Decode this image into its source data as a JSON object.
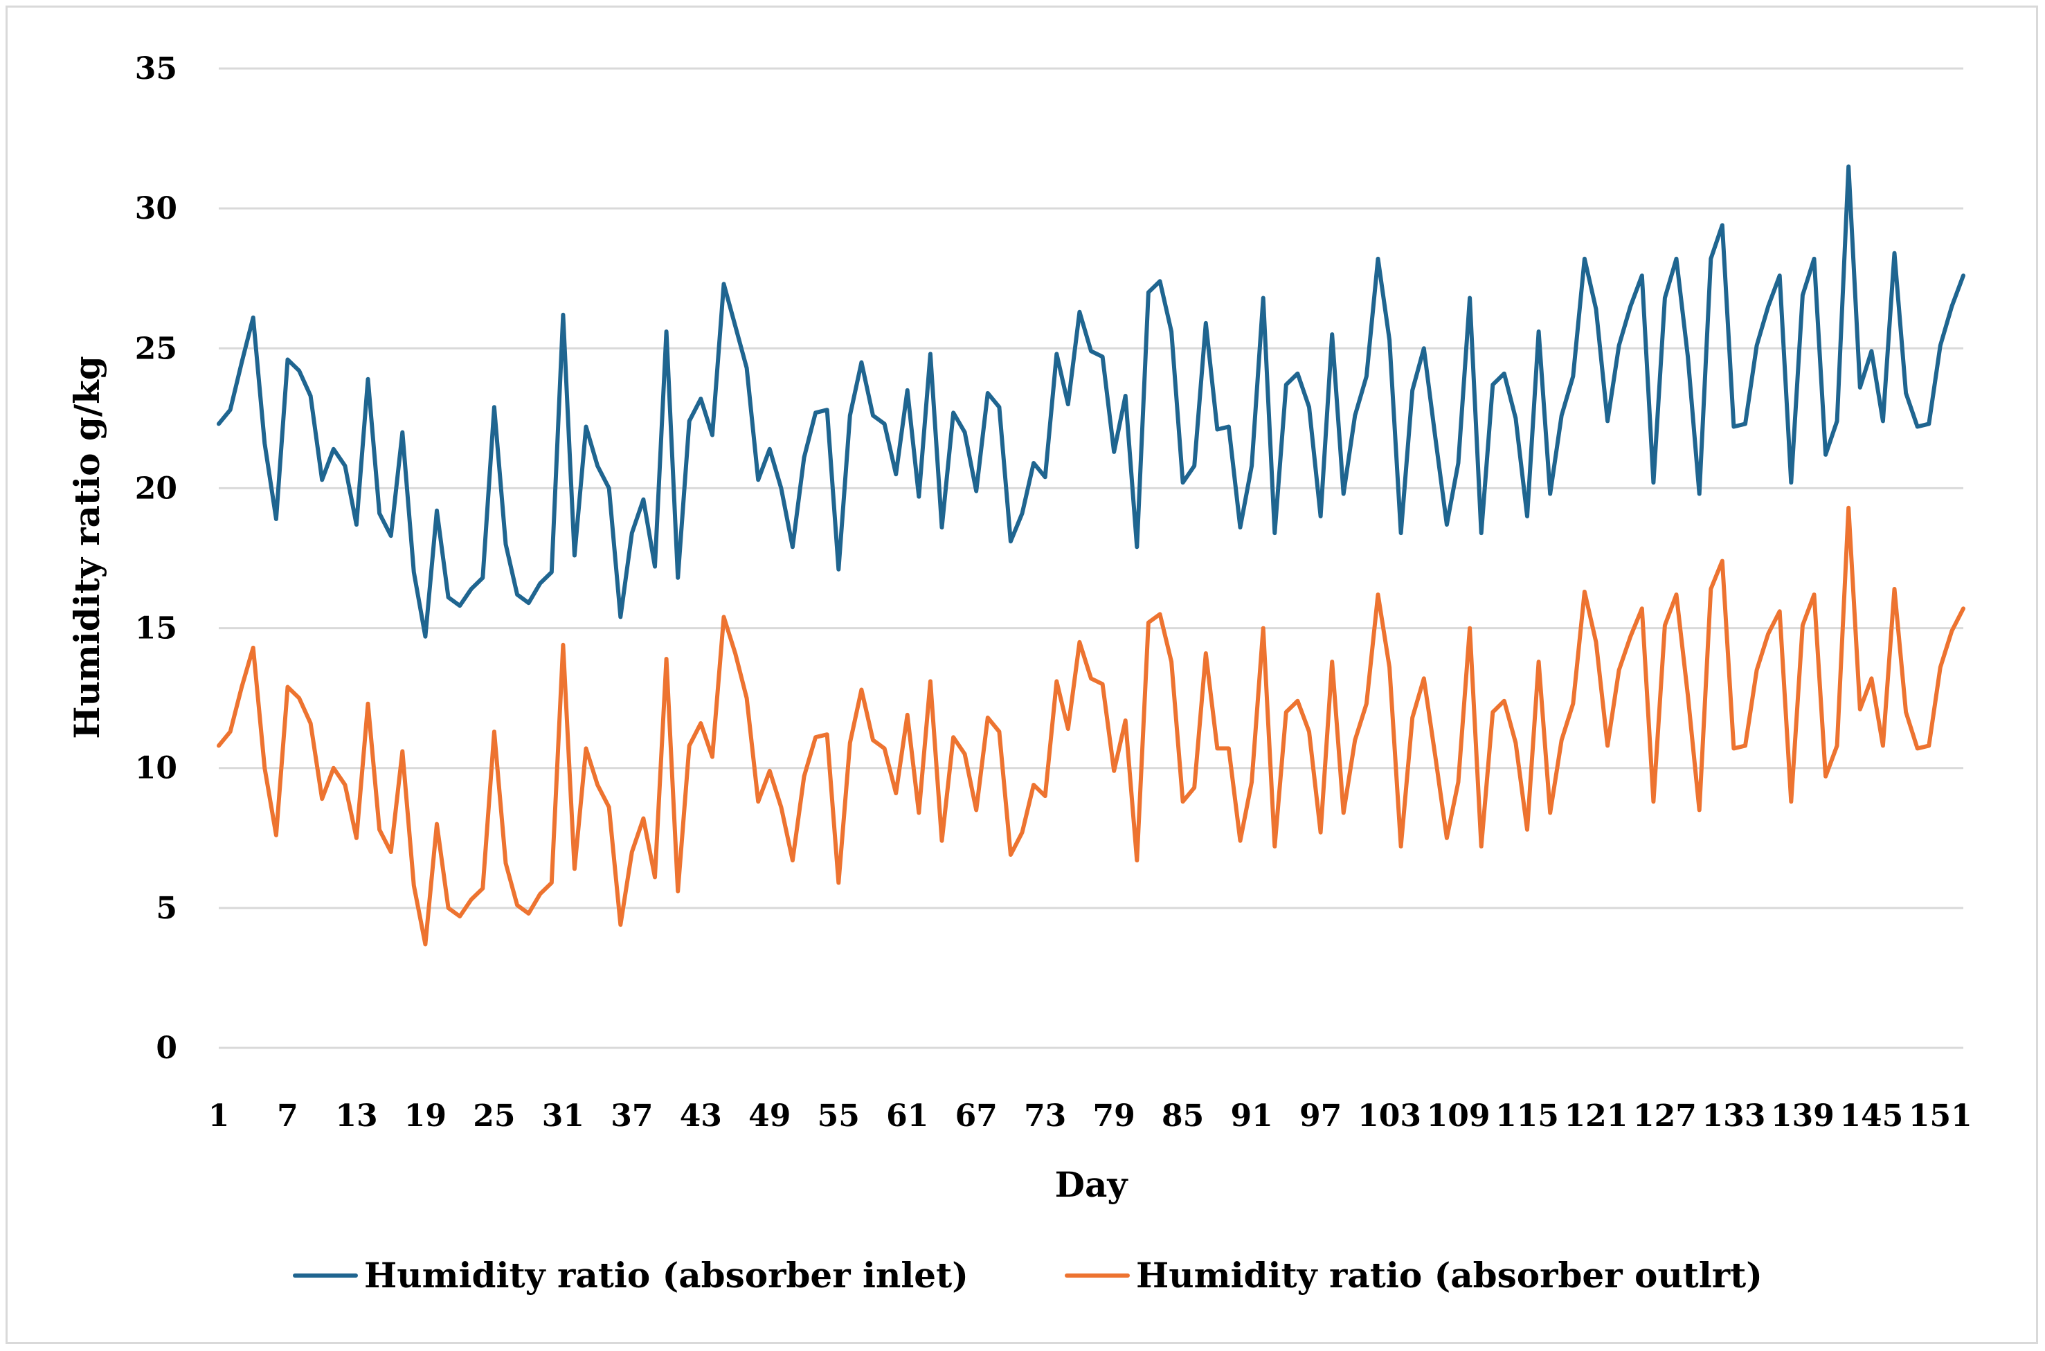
{
  "chart_data": {
    "type": "line",
    "title": "",
    "xlabel": "Day",
    "ylabel": "Humidity  ratio g/kg",
    "ylim": [
      0,
      35
    ],
    "yticks": [
      0,
      5,
      10,
      15,
      20,
      25,
      30,
      35
    ],
    "xticks": [
      1,
      7,
      13,
      19,
      25,
      31,
      37,
      43,
      49,
      55,
      61,
      67,
      73,
      79,
      85,
      91,
      97,
      103,
      109,
      115,
      121,
      127,
      133,
      139,
      145,
      151
    ],
    "grid": true,
    "legend_position": "bottom",
    "x": [
      1,
      2,
      3,
      4,
      5,
      6,
      7,
      8,
      9,
      10,
      11,
      12,
      13,
      14,
      15,
      16,
      17,
      18,
      19,
      20,
      21,
      22,
      23,
      24,
      25,
      26,
      27,
      28,
      29,
      30,
      31,
      32,
      33,
      34,
      35,
      36,
      37,
      38,
      39,
      40,
      41,
      42,
      43,
      44,
      45,
      46,
      47,
      48,
      49,
      50,
      51,
      52,
      53,
      54,
      55,
      56,
      57,
      58,
      59,
      60,
      61,
      62,
      63,
      64,
      65,
      66,
      67,
      68,
      69,
      70,
      71,
      72,
      73,
      74,
      75,
      76,
      77,
      78,
      79,
      80,
      81,
      82,
      83,
      84,
      85,
      86,
      87,
      88,
      89,
      90,
      91,
      92,
      93,
      94,
      95,
      96,
      97,
      98,
      99,
      100,
      101,
      102,
      103,
      104,
      105,
      106,
      107,
      108,
      109,
      110,
      111,
      112,
      113,
      114,
      115,
      116,
      117,
      118,
      119,
      120,
      121,
      122,
      123,
      124,
      125,
      126,
      127,
      128,
      129,
      130,
      131,
      132,
      133,
      134,
      135,
      136,
      137,
      138,
      139,
      140,
      141,
      142,
      143,
      144,
      145,
      146,
      147,
      148,
      149,
      150,
      151,
      152,
      153
    ],
    "series": [
      {
        "name": "Humidity ratio (absorber inlet)",
        "color": "#1f6590",
        "values": [
          22.3,
          22.8,
          24.5,
          26.1,
          21.6,
          18.9,
          24.6,
          24.2,
          23.3,
          20.3,
          21.4,
          20.8,
          18.7,
          23.9,
          19.1,
          18.3,
          22.0,
          17.0,
          14.7,
          19.2,
          16.1,
          15.8,
          16.4,
          16.8,
          22.9,
          18.0,
          16.2,
          15.9,
          16.6,
          17.0,
          26.2,
          17.6,
          22.2,
          20.8,
          20.0,
          15.4,
          18.4,
          19.6,
          17.2,
          25.6,
          16.8,
          22.4,
          23.2,
          21.9,
          27.3,
          25.8,
          24.3,
          20.3,
          21.4,
          20.0,
          17.9,
          21.1,
          22.7,
          22.8,
          17.1,
          22.6,
          24.5,
          22.6,
          22.3,
          20.5,
          23.5,
          19.7,
          24.8,
          18.6,
          22.7,
          22.0,
          19.9,
          23.4,
          22.9,
          18.1,
          19.1,
          20.9,
          20.4,
          24.8,
          23.0,
          26.3,
          24.9,
          24.7,
          21.3,
          23.3,
          17.9,
          27.0,
          27.4,
          25.6,
          20.2,
          20.8,
          25.9,
          22.1,
          22.2,
          18.6,
          20.8,
          26.8,
          18.4,
          23.7,
          24.1,
          22.9,
          19.0,
          25.5,
          19.8,
          22.6,
          24.0,
          28.2,
          25.3,
          18.4,
          23.5,
          25.0,
          21.8,
          18.7,
          20.9,
          26.8,
          18.4,
          23.7,
          24.1,
          22.5,
          19.0,
          25.6,
          19.8,
          22.6,
          24.0,
          28.2,
          26.4,
          22.4,
          25.1,
          26.5,
          27.6,
          20.2,
          26.8,
          28.2,
          24.7,
          19.8,
          28.2,
          29.4,
          22.2,
          22.3,
          25.1,
          26.5,
          27.6,
          20.2,
          26.9,
          28.2,
          21.2,
          22.4,
          31.5,
          23.6,
          24.9,
          22.4,
          28.4,
          23.4,
          22.2,
          22.3,
          25.1,
          26.5,
          27.6
        ]
      },
      {
        "name": "Humidity ratio (absorber outlrt)",
        "color": "#ed7330",
        "values": [
          10.8,
          11.3,
          12.9,
          14.3,
          10.0,
          7.6,
          12.9,
          12.5,
          11.6,
          8.9,
          10.0,
          9.4,
          7.5,
          12.3,
          7.8,
          7.0,
          10.6,
          5.8,
          3.7,
          8.0,
          5.0,
          4.7,
          5.3,
          5.7,
          11.3,
          6.6,
          5.1,
          4.8,
          5.5,
          5.9,
          14.4,
          6.4,
          10.7,
          9.4,
          8.6,
          4.4,
          7.0,
          8.2,
          6.1,
          13.9,
          5.6,
          10.8,
          11.6,
          10.4,
          15.4,
          14.1,
          12.5,
          8.8,
          9.9,
          8.6,
          6.7,
          9.7,
          11.1,
          11.2,
          5.9,
          10.9,
          12.8,
          11.0,
          10.7,
          9.1,
          11.9,
          8.4,
          13.1,
          7.4,
          11.1,
          10.5,
          8.5,
          11.8,
          11.3,
          6.9,
          7.7,
          9.4,
          9.0,
          13.1,
          11.4,
          14.5,
          13.2,
          13.0,
          9.9,
          11.7,
          6.7,
          15.2,
          15.5,
          13.8,
          8.8,
          9.3,
          14.1,
          10.7,
          10.7,
          7.4,
          9.5,
          15.0,
          7.2,
          12.0,
          12.4,
          11.3,
          7.7,
          13.8,
          8.4,
          11.0,
          12.3,
          16.2,
          13.6,
          7.2,
          11.8,
          13.2,
          10.4,
          7.5,
          9.5,
          15.0,
          7.2,
          12.0,
          12.4,
          10.9,
          7.8,
          13.8,
          8.4,
          11.0,
          12.3,
          16.3,
          14.5,
          10.8,
          13.5,
          14.7,
          15.7,
          8.8,
          15.1,
          16.2,
          12.6,
          8.5,
          16.4,
          17.4,
          10.7,
          10.8,
          13.5,
          14.8,
          15.6,
          8.8,
          15.1,
          16.2,
          9.7,
          10.8,
          19.3,
          12.1,
          13.2,
          10.8,
          16.4,
          12.0,
          10.7,
          10.8,
          13.6,
          14.9,
          15.7
        ]
      }
    ]
  }
}
